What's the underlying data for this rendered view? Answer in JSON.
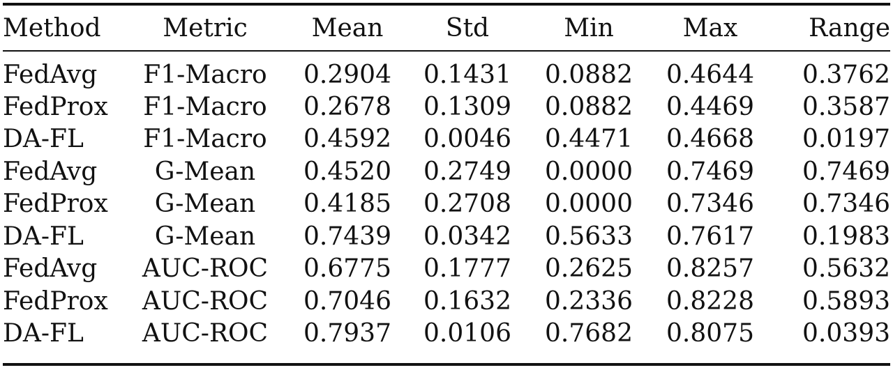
{
  "table": {
    "headers": [
      "Method",
      "Metric",
      "Mean",
      "Std",
      "Min",
      "Max",
      "Range"
    ],
    "rows": [
      [
        "FedAvg",
        "F1-Macro",
        "0.2904",
        "0.1431",
        "0.0882",
        "0.4644",
        "0.3762"
      ],
      [
        "FedProx",
        "F1-Macro",
        "0.2678",
        "0.1309",
        "0.0882",
        "0.4469",
        "0.3587"
      ],
      [
        "DA-FL",
        "F1-Macro",
        "0.4592",
        "0.0046",
        "0.4471",
        "0.4668",
        "0.0197"
      ],
      [
        "FedAvg",
        "G-Mean",
        "0.4520",
        "0.2749",
        "0.0000",
        "0.7469",
        "0.7469"
      ],
      [
        "FedProx",
        "G-Mean",
        "0.4185",
        "0.2708",
        "0.0000",
        "0.7346",
        "0.7346"
      ],
      [
        "DA-FL",
        "G-Mean",
        "0.7439",
        "0.0342",
        "0.5633",
        "0.7617",
        "0.1983"
      ],
      [
        "FedAvg",
        "AUC-ROC",
        "0.6775",
        "0.1777",
        "0.2625",
        "0.8257",
        "0.5632"
      ],
      [
        "FedProx",
        "AUC-ROC",
        "0.7046",
        "0.1632",
        "0.2336",
        "0.8228",
        "0.5893"
      ],
      [
        "DA-FL",
        "AUC-ROC",
        "0.7937",
        "0.0106",
        "0.7682",
        "0.8075",
        "0.0393"
      ]
    ]
  }
}
